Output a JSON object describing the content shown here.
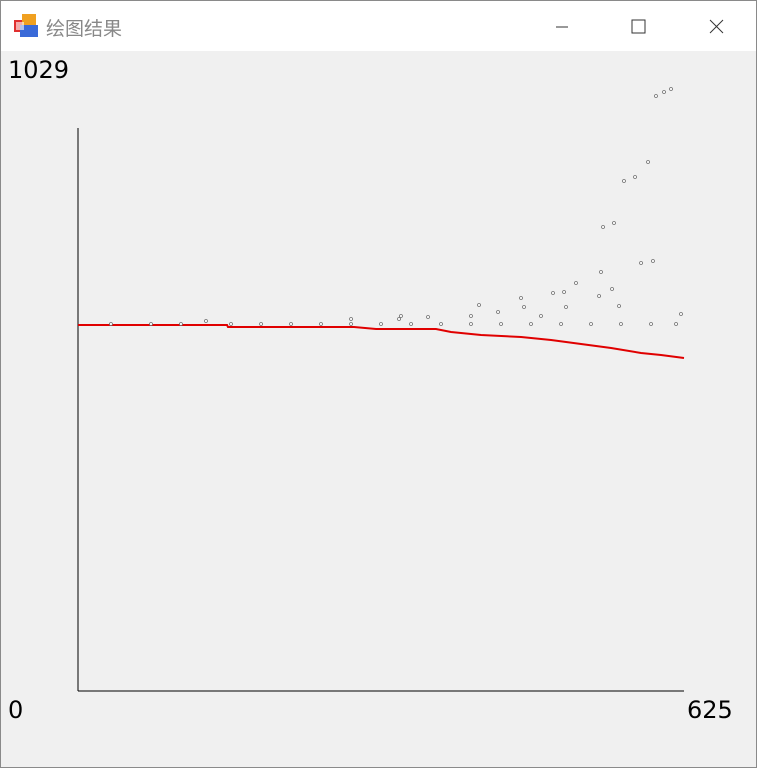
{
  "window": {
    "title": "绘图结果"
  },
  "chart_data": {
    "type": "line",
    "xlim": [
      0,
      625
    ],
    "xticks": [
      625
    ],
    "ylim": [
      0,
      1029
    ],
    "yticks": [
      0,
      1029
    ],
    "series": [
      {
        "type": "line",
        "color": "#e00000",
        "x": [
          0,
          153.7,
          154.7,
          284.7,
          307.4,
          369.2,
          384.7,
          415.7,
          457,
          487.9,
          518.8,
          549.8,
          580.7,
          601.3,
          625
        ],
        "values": [
          607.4,
          607.4,
          604.1,
          604.1,
          600.8,
          600.8,
          595.8,
          590.9,
          587.5,
          582.6,
          575.9,
          569.3,
          561.0,
          557.7,
          552.7
        ]
      },
      {
        "type": "scatter",
        "color": "#707070",
        "x": [
          596.1,
          604.4,
          611.6,
          587.9,
          563.1,
          574.5,
          541.5,
          552.8,
          580.7,
          593.0,
          539.4,
          513.6,
          501.3,
          489.9,
          456.9,
          537.4,
          550.8,
          558.0,
          413.6,
          405.3,
          433.2,
          460.0,
          477.5,
          503.3,
          361.0,
          331.1,
          333.1,
          281.6,
          132.0,
          621.9,
          34.0,
          75.3,
          106.2,
          157.8,
          188.8,
          219.7,
          250.6,
          281.6,
          312.5,
          343.5,
          374.4,
          405.3,
          436.3,
          467.2,
          498.2,
          529.1,
          560.0,
          591.0,
          616.8
        ],
        "values": [
          987.5,
          994.2,
          999.1,
          878.0,
          846.4,
          853.1,
          770.1,
          776.7,
          710.4,
          713.7,
          695.4,
          677.2,
          662.2,
          660.6,
          652.3,
          655.6,
          667.2,
          639.0,
          640.6,
          622.4,
          629.0,
          637.3,
          622.4,
          637.3,
          620.7,
          617.4,
          622.4,
          617.4,
          614.1,
          625.7,
          609.1,
          609.1,
          609.1,
          609.1,
          609.1,
          609.1,
          609.1,
          609.1,
          609.1,
          609.1,
          609.1,
          609.1,
          609.1,
          609.1,
          609.1,
          609.1,
          609.1,
          609.1,
          609.1
        ]
      }
    ]
  }
}
